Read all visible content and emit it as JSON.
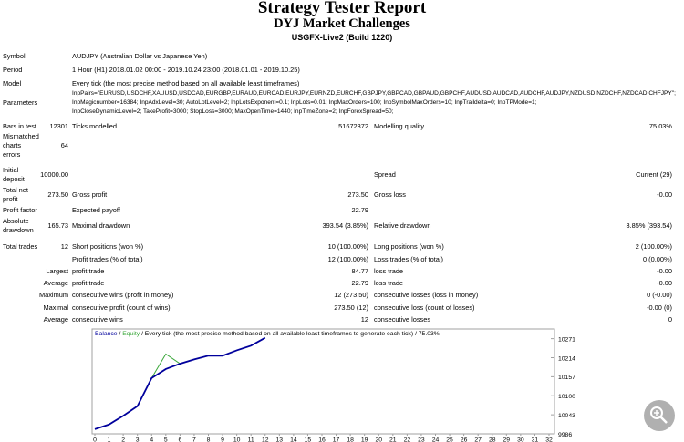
{
  "header": {
    "title": "Strategy Tester Report",
    "subtitle": "DYJ Market Challenges",
    "server": "USGFX-Live2 (Build 1220)"
  },
  "rows": [
    {
      "label": "Symbol",
      "text": [
        "AUDJPY (Australian Dollar vs Japanese Yen)"
      ]
    },
    {
      "label": "Period",
      "text": [
        "1 Hour (H1) 2018.01.02 00:00 - 2019.10.24 23:00 (2018.01.01 - 2019.10.25)"
      ]
    },
    {
      "label": "Model",
      "text": [
        "Every tick (the most precise method based on all available least timeframes)"
      ]
    },
    {
      "label": "Parameters",
      "text": [
        "InpPairs=\"EURUSD,USDCHF,XAUUSD,USDCAD,EURGBP,EURAUD,EURCAD,EURJPY,EURNZD,EURCHF,GBPJPY,GBPCAD,GBPAUD,GBPCHF,AUDUSD,AUDCAD,AUDCHF,AUDJPY,NZDUSD,NZDCHF,NZDCAD,CHFJPY\";",
        "InpMagicnumber=16384; InpAdxLevel=30; AutoLotLevel=2; InpLotsExponent=0.1; InpLots=0.01; InpMaxOrders=100; InpSymbolMaxOrders=10; InpTraildelta=0; InpTPMode=1;",
        "InpCloseDynamicLevel=2; TakeProfit=3000; StopLoss=3000; MaxOpenTime=1440; InpTimeZone=2; InpForexSpread=50;"
      ]
    },
    {
      "label": "Bars in test",
      "value": "12301",
      "label2": "Ticks modelled",
      "value2": "51672372",
      "label3": "Modelling quality",
      "value3": "75.03%"
    },
    {
      "label": [
        "Mismatched",
        "charts",
        "errors"
      ],
      "value": "64"
    },
    {
      "label": [
        "Initial",
        "deposit"
      ],
      "value": "10000.00",
      "label3": "Spread",
      "value3": "Current (29)"
    },
    {
      "label": [
        "Total net",
        "profit"
      ],
      "value": "273.50",
      "label2": "Gross profit",
      "value2": "273.50",
      "label3": "Gross loss",
      "value3": "-0.00"
    },
    {
      "label": "Profit factor",
      "label2": "Expected payoff",
      "value2": "22.79"
    },
    {
      "label": [
        "Absolute",
        "drawdown"
      ],
      "value": "165.73",
      "label2": "Maximal drawdown",
      "value2": "393.54 (3.85%)",
      "label3": "Relative drawdown",
      "value3": "3.85% (393.54)"
    },
    {
      "label": "Total trades",
      "value": "12",
      "label2": "Short positions (won %)",
      "value2": "10 (100.00%)",
      "label3": "Long positions (won %)",
      "value3": "2 (100.00%)"
    },
    {
      "label2": "Profit trades (% of total)",
      "value2": "12 (100.00%)",
      "label3": "Loss trades (% of total)",
      "value3": "0 (0.00%)"
    },
    {
      "qualifier": "Largest",
      "label2": "profit trade",
      "value2": "84.77",
      "label3": "loss trade",
      "value3": "-0.00"
    },
    {
      "qualifier": "Average",
      "label2": "profit trade",
      "value2": "22.79",
      "label3": "loss trade",
      "value3": "-0.00"
    },
    {
      "qualifier": "Maximum",
      "label2": "consecutive wins (profit in money)",
      "value2": "12 (273.50)",
      "label3": "consecutive losses (loss in money)",
      "value3": "0 (-0.00)"
    },
    {
      "qualifier": "Maximal",
      "label2": "consecutive profit (count of wins)",
      "value2": "273.50 (12)",
      "label3": "consecutive loss (count of losses)",
      "value3": "-0.00 (0)"
    },
    {
      "qualifier": "Average",
      "label2": "consecutive wins",
      "value2": "12",
      "label3": "consecutive losses",
      "value3": "0"
    }
  ],
  "chart_data": {
    "type": "line",
    "legend_separator": "/",
    "legend_note": "Every tick (the most precise method based on all available least timeframes to generate each tick)",
    "legend_quality": "75.03%",
    "x": [
      0,
      1,
      2,
      3,
      4,
      5,
      6,
      7,
      8,
      9,
      10,
      11,
      12
    ],
    "series": [
      {
        "name": "Balance",
        "color": "#00009c",
        "values": [
          10000,
          10014,
          10040,
          10069,
          10153,
          10180,
          10196,
          10209,
          10220,
          10220,
          10236,
          10250,
          10273.5
        ]
      },
      {
        "name": "Equity",
        "color": "#3ca83c",
        "values": [
          10000,
          10014,
          10040,
          10069,
          10153,
          10225,
          10196,
          10209,
          10220,
          10220,
          10236,
          10250,
          10273.5
        ]
      }
    ],
    "xlim": [
      0,
      32
    ],
    "xticks": [
      0,
      1,
      2,
      3,
      4,
      5,
      6,
      7,
      8,
      9,
      10,
      11,
      12,
      13,
      14,
      15,
      16,
      17,
      18,
      19,
      20,
      21,
      22,
      23,
      24,
      25,
      26,
      27,
      28,
      29,
      30,
      31,
      32
    ],
    "ylim": [
      9986,
      10300
    ],
    "yticks": [
      9986,
      10043,
      10100,
      10157,
      10214,
      10271
    ]
  }
}
